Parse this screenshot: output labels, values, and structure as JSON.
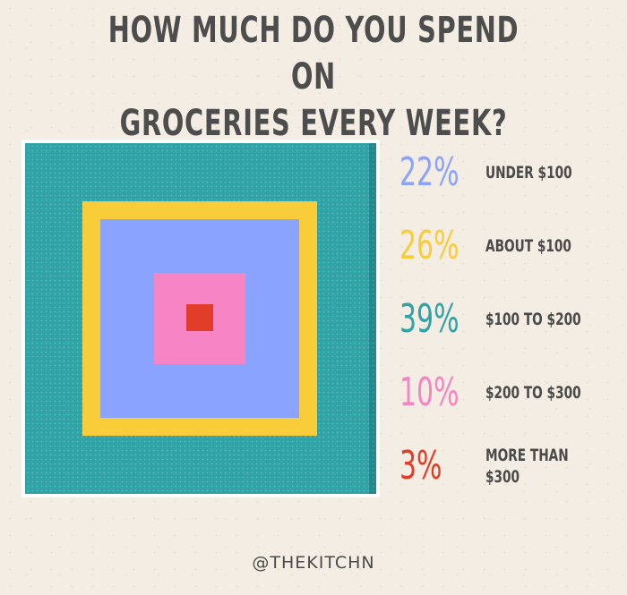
{
  "title_lines": [
    "HOW MUCH DO YOU SPEND ON",
    "GROCERIES EVERY WEEK?"
  ],
  "credit": "@THEKITCHN",
  "colors": {
    "under_100": "#8aa3ff",
    "about_100": "#f9cc3a",
    "100_to_200": "#2fa3a6",
    "200_to_300": "#f784c5",
    "more_than_300": "#e23d28",
    "text": "#4a4a4a",
    "background": "#f4ede3"
  },
  "chart_data": {
    "type": "nested-squares",
    "title": "HOW MUCH DO YOU SPEND ON GROCERIES EVERY WEEK?",
    "unit": "%",
    "categories": [
      "UNDER $100",
      "ABOUT $100",
      "$100 TO $200",
      "$200 TO $300",
      "MORE THAN $300"
    ],
    "values": [
      22,
      26,
      39,
      10,
      3
    ],
    "legend": [
      {
        "pct": "22%",
        "label": "UNDER $100",
        "color": "#8aa3ff"
      },
      {
        "pct": "26%",
        "label": "ABOUT $100",
        "color": "#f9cc3a"
      },
      {
        "pct": "39%",
        "label": "$100 TO $200",
        "color": "#2fa3a6"
      },
      {
        "pct": "10%",
        "label": "$200 TO $300",
        "color": "#f784c5"
      },
      {
        "pct": "3%",
        "label": "MORE THAN $300",
        "color": "#e23d28"
      }
    ],
    "legend_placement": "right"
  }
}
